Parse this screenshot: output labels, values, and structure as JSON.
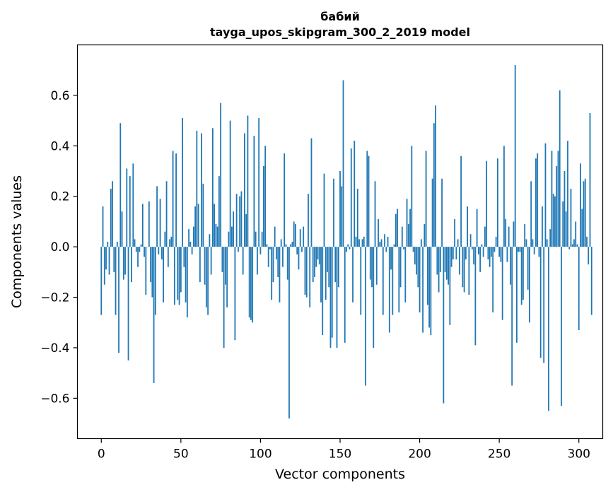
{
  "chart_data": {
    "type": "bar",
    "title": "бабий",
    "subtitle": "tayga_upos_skipgram_300_2_2019 model",
    "xlabel": "Vector components",
    "ylabel": "Components values",
    "xlim": [
      -15,
      315
    ],
    "ylim": [
      -0.76,
      0.8
    ],
    "xticks": [
      0,
      50,
      100,
      150,
      200,
      250,
      300
    ],
    "yticks": [
      -0.6,
      -0.4,
      -0.2,
      0.0,
      0.2,
      0.4,
      0.6
    ],
    "xtick_labels": [
      "0",
      "50",
      "100",
      "150",
      "200",
      "250",
      "300"
    ],
    "ytick_labels": [
      "−0.6",
      "−0.4",
      "−0.2",
      "0.0",
      "0.2",
      "0.4",
      "0.6"
    ],
    "grid": false,
    "bar_color": "#1f77b4",
    "x_start": 0,
    "values": [
      -0.27,
      0.16,
      -0.15,
      -0.09,
      0.02,
      -0.11,
      0.23,
      0.26,
      -0.1,
      -0.27,
      0.02,
      -0.42,
      0.49,
      0.14,
      -0.13,
      -0.11,
      0.31,
      -0.45,
      0.28,
      -0.14,
      0.33,
      0.03,
      -0.02,
      -0.08,
      -0.02,
      0.01,
      0.17,
      -0.04,
      -0.19,
      0.0,
      0.18,
      -0.14,
      -0.2,
      -0.54,
      -0.27,
      0.24,
      -0.03,
      0.19,
      -0.05,
      -0.22,
      0.06,
      0.26,
      -0.08,
      0.03,
      0.04,
      0.38,
      -0.23,
      0.37,
      -0.21,
      -0.23,
      -0.18,
      0.51,
      -0.08,
      -0.22,
      -0.28,
      0.07,
      0.02,
      -0.03,
      0.08,
      0.16,
      0.46,
      0.17,
      -0.14,
      0.45,
      0.25,
      -0.15,
      -0.24,
      -0.27,
      0.05,
      -0.11,
      0.47,
      0.17,
      0.09,
      0.08,
      0.28,
      0.57,
      -0.1,
      -0.4,
      -0.15,
      -0.24,
      0.06,
      0.5,
      0.08,
      0.14,
      -0.37,
      0.21,
      -0.02,
      0.2,
      0.22,
      -0.11,
      0.45,
      0.13,
      0.52,
      -0.28,
      -0.29,
      -0.3,
      0.44,
      0.06,
      -0.11,
      0.51,
      -0.03,
      0.06,
      0.32,
      0.4,
      0.01,
      -0.08,
      -0.01,
      -0.21,
      -0.14,
      0.08,
      -0.05,
      -0.12,
      -0.22,
      0.03,
      -0.08,
      0.37,
      0.01,
      -0.13,
      -0.68,
      0.01,
      0.02,
      0.1,
      0.09,
      -0.03,
      -0.09,
      0.07,
      -0.02,
      0.08,
      -0.19,
      -0.2,
      0.21,
      -0.24,
      0.43,
      -0.14,
      -0.12,
      -0.08,
      -0.05,
      -0.07,
      -0.22,
      -0.35,
      0.29,
      -0.21,
      -0.1,
      -0.16,
      -0.4,
      -0.36,
      0.27,
      -0.14,
      -0.4,
      -0.16,
      0.3,
      0.24,
      0.66,
      -0.38,
      -0.02,
      0.01,
      -0.01,
      0.39,
      -0.22,
      0.42,
      0.04,
      0.23,
      0.03,
      -0.27,
      0.03,
      0.04,
      -0.55,
      0.38,
      0.36,
      -0.13,
      -0.16,
      -0.4,
      0.26,
      -0.15,
      0.11,
      0.02,
      0.03,
      -0.27,
      0.05,
      -0.02,
      0.04,
      -0.34,
      -0.09,
      -0.27,
      0.01,
      0.13,
      0.15,
      -0.26,
      -0.16,
      0.08,
      -0.01,
      -0.22,
      0.19,
      0.09,
      0.15,
      0.4,
      -0.02,
      -0.07,
      -0.11,
      -0.16,
      -0.26,
      0.03,
      -0.34,
      0.09,
      0.38,
      -0.23,
      -0.32,
      -0.35,
      0.27,
      0.49,
      0.56,
      -0.11,
      -0.18,
      -0.1,
      0.27,
      -0.62,
      -0.1,
      -0.13,
      -0.15,
      -0.31,
      -0.08,
      -0.05,
      0.11,
      -0.05,
      0.03,
      -0.11,
      0.36,
      -0.16,
      -0.18,
      -0.05,
      0.16,
      -0.19,
      0.05,
      -0.01,
      -0.07,
      -0.39,
      0.15,
      -0.03,
      -0.1,
      0.01,
      -0.04,
      0.08,
      0.34,
      -0.05,
      -0.08,
      -0.04,
      -0.26,
      -0.02,
      0.04,
      0.35,
      -0.04,
      -0.06,
      -0.29,
      0.4,
      0.11,
      -0.06,
      0.08,
      -0.15,
      -0.55,
      0.1,
      0.72,
      -0.38,
      -0.02,
      -0.02,
      -0.23,
      -0.21,
      0.09,
      0.03,
      -0.17,
      -0.3,
      0.26,
      0.03,
      -0.03,
      0.35,
      0.37,
      -0.04,
      -0.44,
      0.16,
      -0.46,
      0.41,
      0.03,
      -0.65,
      0.07,
      0.38,
      0.21,
      0.2,
      0.32,
      0.38,
      0.62,
      -0.63,
      0.18,
      0.3,
      0.14,
      0.42,
      -0.01,
      0.23,
      0.01,
      0.03,
      0.1,
      0.01,
      -0.33,
      0.33,
      0.15,
      0.26,
      0.27,
      0.04,
      -0.07,
      0.53,
      -0.27
    ]
  }
}
